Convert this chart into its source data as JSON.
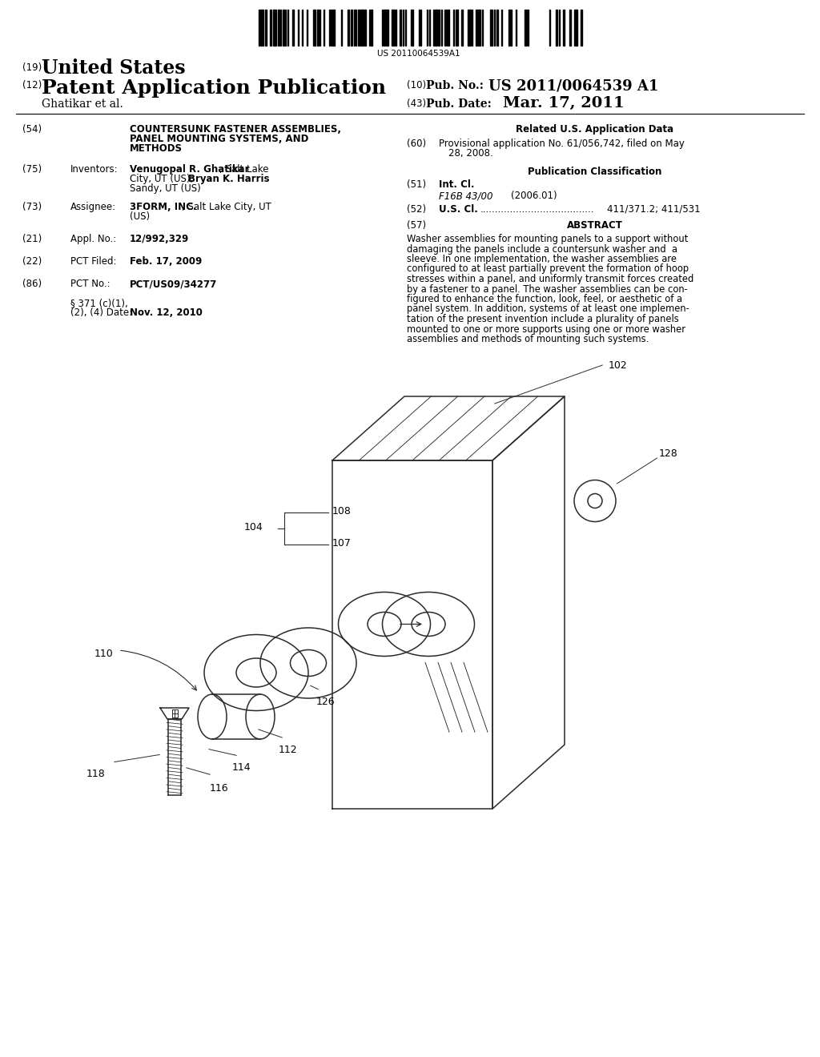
{
  "background_color": "#ffffff",
  "barcode_text": "US 20110064539A1",
  "header": {
    "country_num": "(19)",
    "country": "United States",
    "pub_type_num": "(12)",
    "pub_type": "Patent Application Publication",
    "pub_no_num": "(10)",
    "pub_no_label": "Pub. No.:",
    "pub_no": "US 2011/0064539 A1",
    "author": "Ghatikar et al.",
    "pub_date_num": "(43)",
    "pub_date_label": "Pub. Date:",
    "pub_date": "Mar. 17, 2011"
  },
  "abstract_text": "Washer assemblies for mounting panels to a support without damaging the panels include a countersunk washer and a sleeve. In one implementation, the washer assemblies are configured to at least partially prevent the formation of hoop stresses within a panel, and uniformly transmit forces created by a fastener to a panel. The washer assemblies can be con-figured to enhance the function, look, feel, or aesthetic of a panel system. In addition, systems of at least one implemen-tation of the present invention include a plurality of panels mounted to one or more supports using one or more washer assemblies and methods of mounting such systems."
}
